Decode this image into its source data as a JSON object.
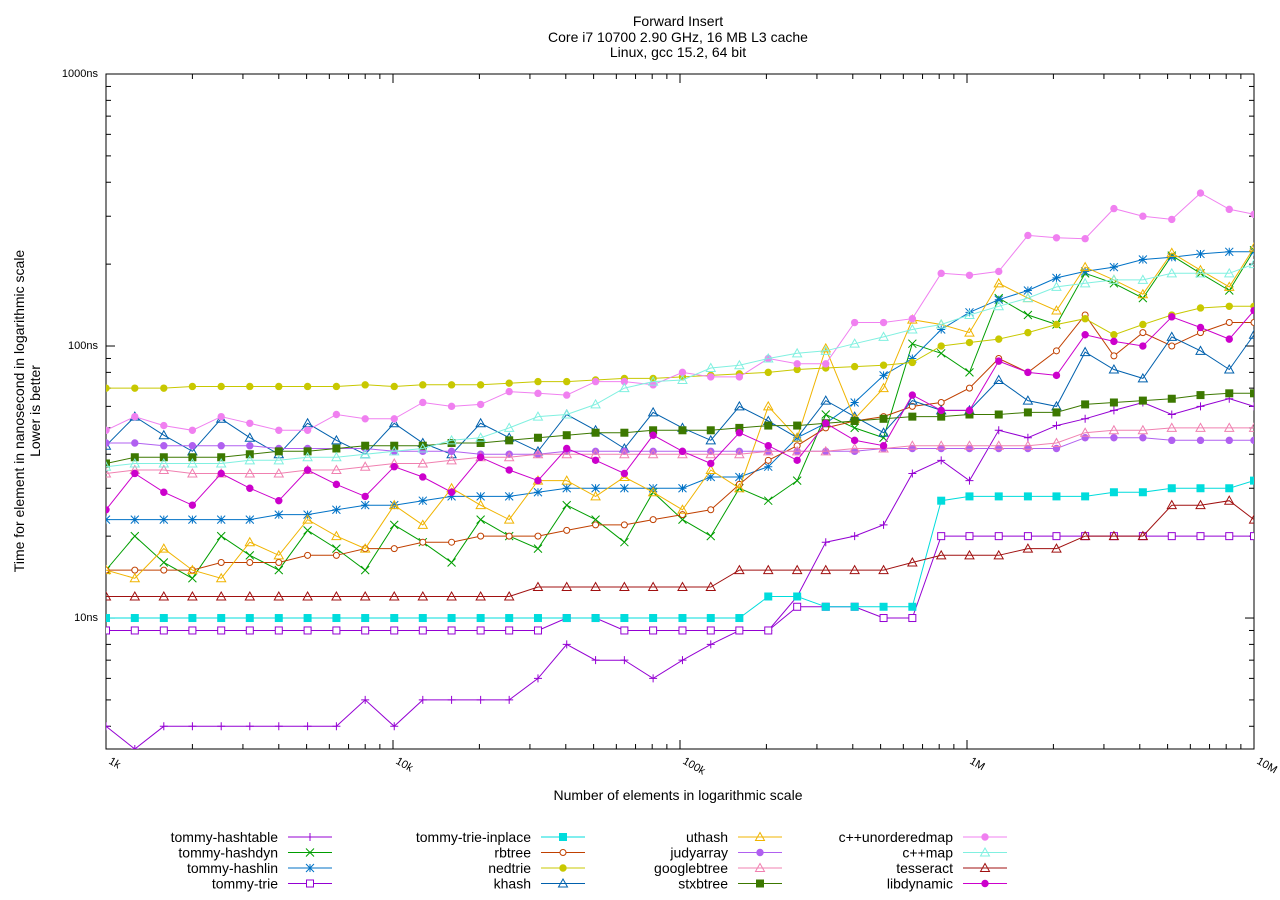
{
  "chart_data": {
    "type": "line",
    "title": "Forward Insert",
    "subtitle_lines": [
      "Core i7 10700 2.90 GHz, 16 MB L3 cache",
      "Linux, gcc 15.2, 64 bit"
    ],
    "xlabel": "Number of elements in logarithmic scale",
    "ylabel_lines": [
      "Time for element in nanosecond in logarithmic scale",
      "Lower is better"
    ],
    "x_scale": "log",
    "y_scale": "log",
    "xlim": [
      1000,
      10000000
    ],
    "ylim": [
      3.3,
      1000
    ],
    "grid": false,
    "legend_position": "bottom",
    "x_ticks": [
      {
        "value": 1000,
        "label": "1k"
      },
      {
        "value": 10000,
        "label": "10k"
      },
      {
        "value": 100000,
        "label": "100k"
      },
      {
        "value": 1000000,
        "label": "1M"
      },
      {
        "value": 10000000,
        "label": "10M"
      }
    ],
    "y_ticks": [
      {
        "value": 10,
        "label": "10ns"
      },
      {
        "value": 100,
        "label": "100ns"
      },
      {
        "value": 1000,
        "label": "1000ns"
      }
    ],
    "x": [
      1000,
      1260,
      1590,
      2000,
      2520,
      3170,
      4000,
      5040,
      6350,
      8000,
      10100,
      12700,
      16000,
      20200,
      25400,
      32000,
      40300,
      50800,
      64000,
      80600,
      102000,
      128000,
      161000,
      203000,
      256000,
      322000,
      406000,
      512000,
      645000,
      813000,
      1020000,
      1290000,
      1630000,
      2050000,
      2580000,
      3250000,
      4100000,
      5170000,
      6510000,
      8200000,
      10000000
    ],
    "series": [
      {
        "name": "tommy-hashtable",
        "color": "#9400d3",
        "marker": "plus",
        "values": [
          4,
          3.3,
          4,
          4,
          4,
          4,
          4,
          4,
          4,
          5,
          4,
          5,
          5,
          5,
          5,
          6,
          8,
          7,
          7,
          6,
          7,
          8,
          9,
          9,
          12,
          19,
          20,
          22,
          34,
          38,
          32,
          49,
          46,
          51,
          54,
          58,
          62,
          56,
          60,
          64,
          60
        ]
      },
      {
        "name": "tommy-hashdyn",
        "color": "#009e00",
        "marker": "x",
        "values": [
          15,
          20,
          16,
          14,
          20,
          17,
          15,
          21,
          18,
          15,
          22,
          19,
          16,
          23,
          20,
          18,
          26,
          23,
          19,
          29,
          23,
          20,
          30,
          27,
          32,
          56,
          50,
          46,
          102,
          94,
          80,
          150,
          130,
          120,
          185,
          170,
          150,
          215,
          185,
          160,
          225
        ]
      },
      {
        "name": "tommy-hashlin",
        "color": "#0072c6",
        "marker": "star",
        "values": [
          23,
          23,
          23,
          23,
          23,
          23,
          24,
          24,
          25,
          26,
          26,
          27,
          28,
          28,
          28,
          29,
          30,
          30,
          30,
          30,
          30,
          33,
          33,
          36,
          46,
          52,
          62,
          78,
          90,
          115,
          133,
          148,
          160,
          178,
          188,
          195,
          208,
          212,
          218,
          222,
          222
        ]
      },
      {
        "name": "tommy-trie",
        "color": "#9400d3",
        "marker": "box",
        "values": [
          9,
          9,
          9,
          9,
          9,
          9,
          9,
          9,
          9,
          9,
          9,
          9,
          9,
          9,
          9,
          9,
          10,
          10,
          9,
          9,
          9,
          9,
          9,
          9,
          11,
          11,
          11,
          10,
          10,
          20,
          20,
          20,
          20,
          20,
          20,
          20,
          20,
          20,
          20,
          20,
          20
        ]
      },
      {
        "name": "tommy-trie-inplace",
        "color": "#00dcdc",
        "marker": "filledbox",
        "values": [
          10,
          10,
          10,
          10,
          10,
          10,
          10,
          10,
          10,
          10,
          10,
          10,
          10,
          10,
          10,
          10,
          10,
          10,
          10,
          10,
          10,
          10,
          10,
          12,
          12,
          11,
          11,
          11,
          11,
          27,
          28,
          28,
          28,
          28,
          28,
          29,
          29,
          30,
          30,
          30,
          32
        ]
      },
      {
        "name": "rbtree",
        "color": "#c04000",
        "marker": "circle",
        "values": [
          15,
          15,
          15,
          15,
          16,
          16,
          16,
          17,
          17,
          18,
          18,
          19,
          19,
          20,
          20,
          20,
          21,
          22,
          22,
          23,
          24,
          25,
          31,
          38,
          43,
          50,
          53,
          55,
          60,
          62,
          70,
          90,
          80,
          96,
          130,
          92,
          112,
          100,
          112,
          122,
          122
        ]
      },
      {
        "name": "nedtrie",
        "color": "#c8c800",
        "marker": "filledcircle",
        "values": [
          70,
          70,
          70,
          71,
          71,
          71,
          71,
          71,
          71,
          72,
          71,
          72,
          72,
          72,
          73,
          74,
          74,
          75,
          76,
          76,
          77,
          78,
          79,
          80,
          82,
          83,
          84,
          85,
          87,
          100,
          103,
          106,
          112,
          120,
          126,
          110,
          120,
          130,
          138,
          140,
          140
        ]
      },
      {
        "name": "khash",
        "color": "#0060ad",
        "marker": "triangle",
        "values": [
          43,
          55,
          47,
          41,
          54,
          46,
          40,
          52,
          45,
          40,
          52,
          44,
          40,
          52,
          46,
          41,
          56,
          49,
          42,
          57,
          50,
          45,
          60,
          53,
          46,
          63,
          55,
          48,
          63,
          58,
          58,
          75,
          63,
          60,
          95,
          82,
          76,
          108,
          96,
          82,
          110
        ]
      },
      {
        "name": "uthash",
        "color": "#f0b400",
        "marker": "triangle",
        "values": [
          15,
          14,
          18,
          15,
          14,
          19,
          17,
          23,
          20,
          18,
          26,
          22,
          30,
          26,
          23,
          32,
          32,
          28,
          33,
          29,
          25,
          35,
          30,
          60,
          46,
          98,
          54,
          70,
          125,
          120,
          112,
          170,
          150,
          135,
          195,
          175,
          155,
          220,
          190,
          165,
          230
        ]
      },
      {
        "name": "judyarray",
        "color": "#b060f0",
        "marker": "filledcircle",
        "values": [
          44,
          44,
          43,
          43,
          43,
          43,
          42,
          42,
          42,
          42,
          41,
          41,
          41,
          40,
          40,
          40,
          41,
          41,
          41,
          41,
          41,
          41,
          41,
          41,
          41,
          41,
          41,
          42,
          42,
          42,
          42,
          42,
          42,
          42,
          46,
          46,
          46,
          45,
          45,
          45,
          45
        ]
      },
      {
        "name": "googlebtree",
        "color": "#f080b0",
        "marker": "triangle",
        "values": [
          34,
          35,
          35,
          34,
          34,
          34,
          34,
          35,
          35,
          36,
          37,
          37,
          38,
          39,
          39,
          40,
          40,
          40,
          40,
          40,
          40,
          40,
          40,
          41,
          41,
          41,
          42,
          42,
          43,
          43,
          43,
          43,
          43,
          44,
          48,
          49,
          49,
          50,
          50,
          50,
          50
        ]
      },
      {
        "name": "stxbtree",
        "color": "#3c7800",
        "marker": "filledbox",
        "values": [
          37,
          39,
          39,
          39,
          39,
          40,
          41,
          41,
          42,
          43,
          43,
          43,
          44,
          44,
          45,
          46,
          47,
          48,
          48,
          49,
          49,
          49,
          50,
          51,
          51,
          52,
          53,
          54,
          55,
          55,
          56,
          56,
          57,
          57,
          61,
          62,
          63,
          64,
          66,
          67,
          67
        ]
      },
      {
        "name": "c++unorderedmap",
        "color": "#f080f0",
        "marker": "filledcircle",
        "values": [
          49,
          55,
          51,
          49,
          55,
          52,
          49,
          49,
          56,
          54,
          54,
          62,
          60,
          61,
          68,
          67,
          66,
          74,
          74,
          72,
          80,
          77,
          77,
          90,
          86,
          86,
          122,
          122,
          126,
          185,
          182,
          188,
          255,
          250,
          248,
          320,
          300,
          292,
          365,
          318,
          305
        ]
      },
      {
        "name": "c++map",
        "color": "#80f0e0",
        "marker": "triangle",
        "values": [
          36,
          37,
          37,
          37,
          37,
          38,
          38,
          39,
          39,
          40,
          41,
          42,
          45,
          46,
          50,
          55,
          56,
          61,
          70,
          74,
          75,
          83,
          85,
          90,
          94,
          96,
          102,
          108,
          115,
          120,
          130,
          140,
          150,
          165,
          170,
          175,
          175,
          185,
          185,
          185,
          200
        ]
      },
      {
        "name": "tesseract",
        "color": "#a01010",
        "marker": "triangle",
        "values": [
          12,
          12,
          12,
          12,
          12,
          12,
          12,
          12,
          12,
          12,
          12,
          12,
          12,
          12,
          12,
          13,
          13,
          13,
          13,
          13,
          13,
          13,
          15,
          15,
          15,
          15,
          15,
          15,
          16,
          17,
          17,
          17,
          18,
          18,
          20,
          20,
          20,
          26,
          26,
          27,
          23
        ]
      },
      {
        "name": "libdynamic",
        "color": "#cc00cc",
        "marker": "filledcircle",
        "values": [
          25,
          34,
          29,
          26,
          34,
          30,
          27,
          35,
          31,
          28,
          36,
          33,
          29,
          39,
          35,
          32,
          42,
          38,
          34,
          47,
          41,
          37,
          48,
          43,
          38,
          52,
          45,
          43,
          66,
          58,
          58,
          88,
          80,
          78,
          110,
          104,
          100,
          128,
          117,
          106,
          135
        ]
      }
    ]
  }
}
